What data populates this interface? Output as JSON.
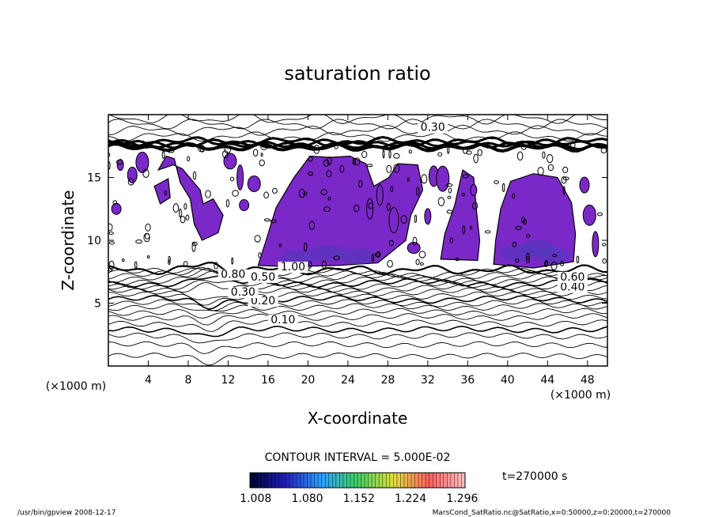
{
  "chart_data": {
    "type": "contour",
    "title": "saturation ratio",
    "xlabel": "X-coordinate",
    "ylabel": "Z-coordinate",
    "x_unit": "(×1000 m)",
    "y_unit": "(×1000 m)",
    "xlim": [
      0,
      50
    ],
    "ylim": [
      0,
      20
    ],
    "x_ticks": [
      4,
      8,
      12,
      16,
      20,
      24,
      28,
      32,
      36,
      40,
      44,
      48
    ],
    "y_ticks": [
      5,
      10,
      15
    ],
    "contour_labels": [
      {
        "text": "0.30",
        "x": 32.5,
        "z": 18.7
      },
      {
        "text": "0.10",
        "x": 17.5,
        "z": 3.4
      },
      {
        "text": "0.20",
        "x": 15.5,
        "z": 4.9
      },
      {
        "text": "0.30",
        "x": 13.5,
        "z": 5.6
      },
      {
        "text": "0.40",
        "x": 46.5,
        "z": 6.0
      },
      {
        "text": "0.50",
        "x": 15.5,
        "z": 6.8
      },
      {
        "text": "0.60",
        "x": 46.5,
        "z": 6.8
      },
      {
        "text": "0.80",
        "x": 12.5,
        "z": 7.0
      },
      {
        "text": "1.00",
        "x": 18.5,
        "z": 7.6
      }
    ],
    "contour_interval_text": "CONTOUR INTERVAL = 5.000E-02",
    "colorbar": {
      "ticks": [
        "1.008",
        "1.080",
        "1.152",
        "1.224",
        "1.296"
      ],
      "range": [
        1.0,
        1.3
      ],
      "colors": [
        "#000033",
        "#2020c0",
        "#30a0ff",
        "#40d060",
        "#e0e040",
        "#ff6060",
        "#ffc0c0"
      ]
    },
    "fill_color": "#7b28c8",
    "time_text": "t=270000 s"
  },
  "footer": {
    "left": "/usr/bin/gpview  2008-12-17",
    "right": "MarsCond_SatRatio.nc@SatRatio,x=0:50000,z=0:20000,t=270000"
  }
}
